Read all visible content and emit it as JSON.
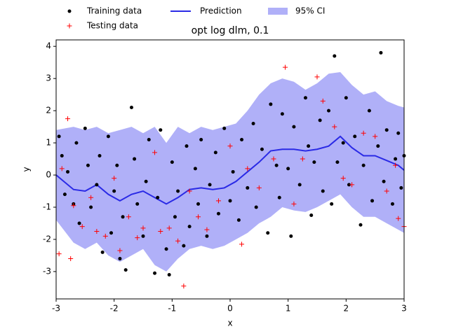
{
  "chart_data": {
    "type": "scatter",
    "title": "opt log dlm, 0.1",
    "x_label": "x",
    "y_label": "y",
    "xlim": [
      -3,
      3
    ],
    "ylim": [
      -3.85,
      4.2
    ],
    "xticks": [
      -3,
      -2,
      -1,
      0,
      1,
      2,
      3
    ],
    "yticks": [
      -3,
      -2,
      -1,
      0,
      1,
      2,
      3,
      4
    ],
    "series": [
      {
        "name": "Training data",
        "kind": "dots",
        "color": "#000000",
        "x": [
          -2.95,
          -2.9,
          -2.85,
          -2.8,
          -2.7,
          -2.65,
          -2.6,
          -2.5,
          -2.45,
          -2.4,
          -2.3,
          -2.25,
          -2.2,
          -2.1,
          -2.05,
          -2.0,
          -1.95,
          -1.9,
          -1.85,
          -1.8,
          -1.7,
          -1.65,
          -1.6,
          -1.5,
          -1.45,
          -1.4,
          -1.3,
          -1.25,
          -1.2,
          -1.1,
          -1.05,
          -1.0,
          -0.95,
          -0.9,
          -0.8,
          -0.75,
          -0.7,
          -0.6,
          -0.55,
          -0.5,
          -0.4,
          -0.35,
          -0.25,
          -0.2,
          -0.1,
          0.0,
          0.05,
          0.15,
          0.2,
          0.3,
          0.4,
          0.45,
          0.55,
          0.65,
          0.7,
          0.8,
          0.85,
          0.9,
          1.0,
          1.05,
          1.1,
          1.2,
          1.3,
          1.35,
          1.4,
          1.45,
          1.55,
          1.6,
          1.7,
          1.75,
          1.8,
          1.85,
          1.95,
          2.0,
          2.05,
          2.15,
          2.25,
          2.3,
          2.4,
          2.45,
          2.55,
          2.6,
          2.65,
          2.7,
          2.8,
          2.85,
          2.9,
          2.95,
          3.0
        ],
        "values": [
          1.2,
          0.6,
          -0.6,
          0.1,
          -0.9,
          1.0,
          -1.5,
          1.45,
          0.3,
          -1.0,
          -0.3,
          0.6,
          -2.4,
          1.2,
          -1.8,
          -0.5,
          0.3,
          -2.6,
          -1.3,
          -2.95,
          2.1,
          0.5,
          -0.9,
          -1.9,
          -0.2,
          1.1,
          -3.05,
          -0.7,
          1.4,
          -2.3,
          -3.1,
          0.4,
          -1.3,
          -0.5,
          -2.2,
          0.9,
          -1.6,
          0.2,
          -0.9,
          1.1,
          -1.9,
          -0.3,
          0.7,
          -1.2,
          1.45,
          -0.8,
          0.1,
          -1.4,
          1.1,
          -0.4,
          1.6,
          -1.0,
          0.8,
          -1.8,
          2.2,
          0.3,
          -0.7,
          1.9,
          0.2,
          -1.9,
          1.5,
          -0.3,
          2.4,
          0.9,
          -1.25,
          0.4,
          1.7,
          -0.5,
          2.0,
          -0.9,
          3.7,
          0.4,
          1.0,
          2.4,
          -0.3,
          1.2,
          -1.55,
          0.3,
          2.0,
          -0.8,
          0.9,
          3.8,
          -0.2,
          1.4,
          -0.9,
          0.5,
          1.3,
          -0.4,
          0.6
        ]
      },
      {
        "name": "Testing data",
        "kind": "plus",
        "color": "#ff0000",
        "x": [
          -2.95,
          -2.9,
          -2.8,
          -2.75,
          -2.7,
          -2.55,
          -2.4,
          -2.3,
          -2.15,
          -2.0,
          -1.9,
          -1.75,
          -1.6,
          -1.5,
          -1.3,
          -1.2,
          -1.05,
          -0.9,
          -0.8,
          -0.7,
          -0.55,
          -0.4,
          -0.2,
          0.0,
          0.2,
          0.3,
          0.5,
          0.75,
          0.95,
          1.1,
          1.25,
          1.5,
          1.6,
          1.8,
          1.95,
          2.1,
          2.3,
          2.5,
          2.7,
          2.85,
          2.9,
          3.0
        ],
        "values": [
          -2.45,
          0.2,
          1.75,
          -2.6,
          -0.95,
          -1.6,
          -0.7,
          -1.75,
          -1.9,
          -0.1,
          -2.35,
          -1.3,
          -1.95,
          -1.65,
          0.7,
          -1.75,
          -1.65,
          -2.05,
          -3.45,
          -0.5,
          -1.3,
          -1.7,
          -0.8,
          0.9,
          -2.15,
          0.2,
          -0.4,
          0.5,
          3.35,
          -0.9,
          0.5,
          3.05,
          2.3,
          1.5,
          -0.1,
          -0.3,
          1.3,
          1.2,
          -0.5,
          0.3,
          -1.35,
          -1.6
        ]
      },
      {
        "name": "Prediction",
        "kind": "line",
        "color": "#2a2ae6",
        "x": [
          -3,
          -2.7,
          -2.5,
          -2.3,
          -2.1,
          -1.9,
          -1.7,
          -1.5,
          -1.3,
          -1.1,
          -0.9,
          -0.7,
          -0.5,
          -0.3,
          -0.1,
          0.1,
          0.3,
          0.5,
          0.7,
          0.9,
          1.1,
          1.3,
          1.5,
          1.7,
          1.9,
          2.1,
          2.3,
          2.5,
          2.7,
          2.9,
          3
        ],
        "values": [
          0.0,
          -0.45,
          -0.5,
          -0.3,
          -0.6,
          -0.8,
          -0.6,
          -0.5,
          -0.7,
          -0.9,
          -0.7,
          -0.45,
          -0.4,
          -0.45,
          -0.4,
          -0.2,
          0.1,
          0.4,
          0.75,
          0.8,
          0.8,
          0.75,
          0.8,
          0.9,
          1.2,
          0.85,
          0.6,
          0.6,
          0.45,
          0.3,
          0.15
        ]
      },
      {
        "name": "95% CI",
        "kind": "band",
        "color": "#b0b0f8",
        "x": [
          -3,
          -2.7,
          -2.5,
          -2.3,
          -2.1,
          -1.9,
          -1.7,
          -1.5,
          -1.3,
          -1.1,
          -0.9,
          -0.7,
          -0.5,
          -0.3,
          -0.1,
          0.1,
          0.3,
          0.5,
          0.7,
          0.9,
          1.1,
          1.3,
          1.5,
          1.7,
          1.9,
          2.1,
          2.3,
          2.5,
          2.7,
          2.9,
          3
        ],
        "upper": [
          1.4,
          1.5,
          1.4,
          1.5,
          1.3,
          1.4,
          1.5,
          1.3,
          1.5,
          1.0,
          1.5,
          1.3,
          1.5,
          1.4,
          1.5,
          1.6,
          2.0,
          2.5,
          2.85,
          3.0,
          2.9,
          2.65,
          2.85,
          3.15,
          3.2,
          2.8,
          2.5,
          2.6,
          2.3,
          2.15,
          2.1
        ],
        "lower": [
          -1.4,
          -2.1,
          -2.3,
          -2.1,
          -2.5,
          -2.7,
          -2.5,
          -2.3,
          -2.8,
          -3.0,
          -2.6,
          -2.3,
          -2.2,
          -2.3,
          -2.2,
          -2.0,
          -1.8,
          -1.5,
          -1.3,
          -1.0,
          -1.1,
          -1.15,
          -1.0,
          -0.8,
          -0.6,
          -1.0,
          -1.3,
          -1.3,
          -1.5,
          -1.7,
          -1.8
        ]
      }
    ]
  }
}
